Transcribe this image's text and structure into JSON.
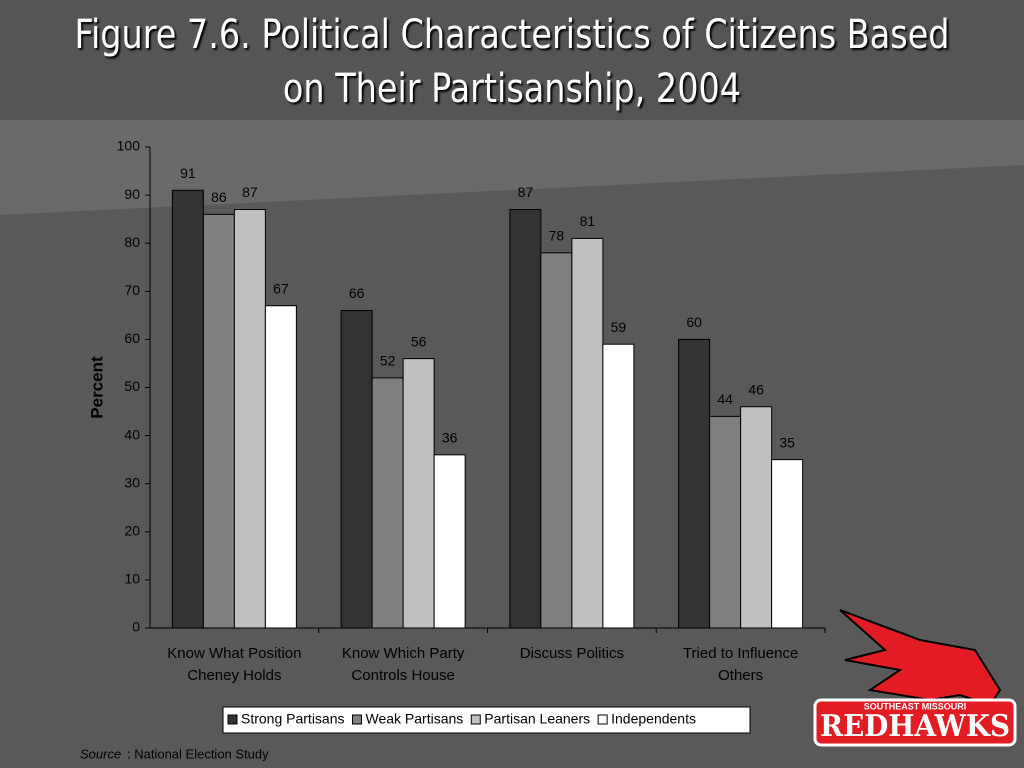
{
  "chart_data": {
    "type": "bar",
    "title": "Figure 7.6. Political Characteristics of Citizens Based on Their Partisanship, 2004",
    "ylabel": "Percent",
    "categories": [
      "Know What Position Cheney Holds",
      "Know Which Party Controls House",
      "Discuss Politics",
      "Tried to Influence Others"
    ],
    "series": [
      {
        "name": "Strong Partisans",
        "color": "#333333",
        "values": [
          91,
          66,
          87,
          60
        ]
      },
      {
        "name": "Weak Partisans",
        "color": "#808080",
        "values": [
          86,
          52,
          78,
          44
        ]
      },
      {
        "name": "Partisan Leaners",
        "color": "#c0c0c0",
        "values": [
          87,
          56,
          81,
          46
        ]
      },
      {
        "name": "Independents",
        "color": "#ffffff",
        "values": [
          67,
          36,
          59,
          35
        ]
      }
    ],
    "ylim": [
      0,
      100
    ],
    "yticks": [
      0,
      10,
      20,
      30,
      40,
      50,
      60,
      70,
      80,
      90,
      100
    ],
    "legend": "bottom",
    "source": {
      "label": "Source",
      "text": ": National Election Study"
    },
    "logo": {
      "top": "SOUTHEAST MISSOURI",
      "name": "REDHAWKS"
    }
  }
}
